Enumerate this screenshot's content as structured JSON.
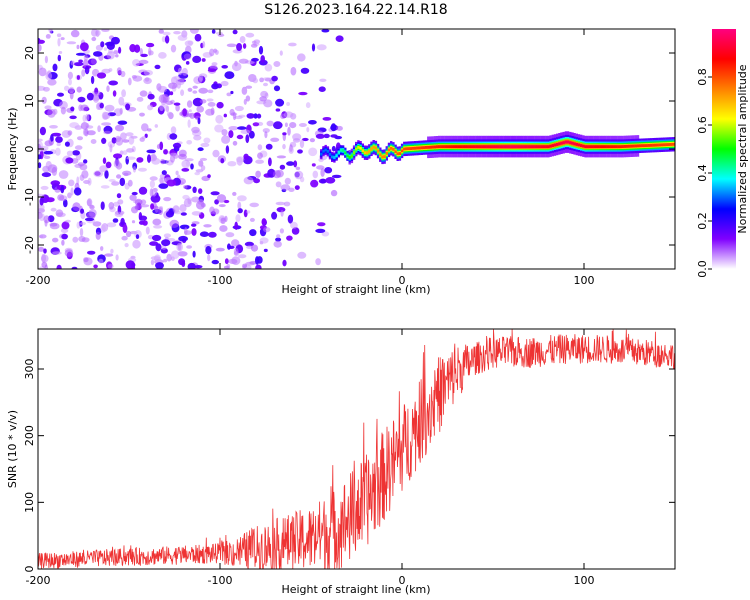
{
  "title": "S126.2023.164.22.14.R18",
  "chart_data": [
    {
      "type": "heatmap",
      "xlabel": "Height of straight line (km)",
      "ylabel": "Frequency (Hz)",
      "xlim": [
        -200,
        150
      ],
      "ylim": [
        -25,
        25
      ],
      "x_ticks": [
        "-200",
        "-100",
        "0",
        "100"
      ],
      "x_tick_values": [
        -200,
        -100,
        0,
        100
      ],
      "y_ticks": [
        "-20",
        "-10",
        "0",
        "10",
        "20"
      ],
      "y_tick_values": [
        -20,
        -10,
        0,
        10,
        20
      ],
      "colorbar": {
        "label": "Normalized spectral amplitude",
        "range": [
          0,
          1
        ],
        "ticks": [
          "0.0",
          "0.2",
          "0.4",
          "0.6",
          "0.8"
        ],
        "tick_values": [
          0.0,
          0.2,
          0.4,
          0.6,
          0.8
        ],
        "colors": [
          "#ffffff",
          "#8000ff",
          "#0000ff",
          "#00ffff",
          "#00ff00",
          "#ffff00",
          "#ff8000",
          "#ff0000",
          "#ff0080"
        ]
      },
      "ridge": {
        "x": [
          -40,
          -30,
          -20,
          -10,
          0,
          20,
          40,
          60,
          80,
          90,
          100,
          120,
          150
        ],
        "frequency": [
          -1,
          -1,
          0,
          -1,
          0,
          0.5,
          0.5,
          0.5,
          0.5,
          1.5,
          0.5,
          0.5,
          1
        ],
        "amplitude": [
          0.3,
          0.5,
          0.7,
          0.75,
          0.8,
          0.85,
          0.9,
          0.95,
          0.9,
          0.95,
          0.9,
          0.85,
          0.8
        ]
      }
    },
    {
      "type": "line",
      "xlabel": "Height of straight line (km)",
      "ylabel": "SNR (10 * v/v)",
      "xlim": [
        -200,
        150
      ],
      "ylim": [
        0,
        360
      ],
      "x_ticks": [
        "-200",
        "-100",
        "0",
        "100"
      ],
      "x_tick_values": [
        -200,
        -100,
        0,
        100
      ],
      "y_ticks": [
        "0",
        "100",
        "200",
        "300"
      ],
      "y_tick_values": [
        0,
        100,
        200,
        300
      ],
      "color": "#ee3333",
      "trend": {
        "x": [
          -200,
          -150,
          -110,
          -90,
          -70,
          -50,
          -35,
          -20,
          -10,
          0,
          10,
          20,
          30,
          40,
          50,
          70,
          90,
          110,
          130,
          150
        ],
        "y": [
          12,
          18,
          22,
          25,
          35,
          45,
          60,
          100,
          140,
          180,
          220,
          260,
          295,
          315,
          325,
          325,
          330,
          330,
          325,
          320
        ]
      },
      "noise_amplitude": {
        "x": [
          -200,
          -100,
          -80,
          -50,
          -30,
          -10,
          20,
          40,
          150
        ],
        "amplitude": [
          12,
          15,
          35,
          50,
          70,
          70,
          60,
          25,
          20
        ]
      }
    }
  ]
}
